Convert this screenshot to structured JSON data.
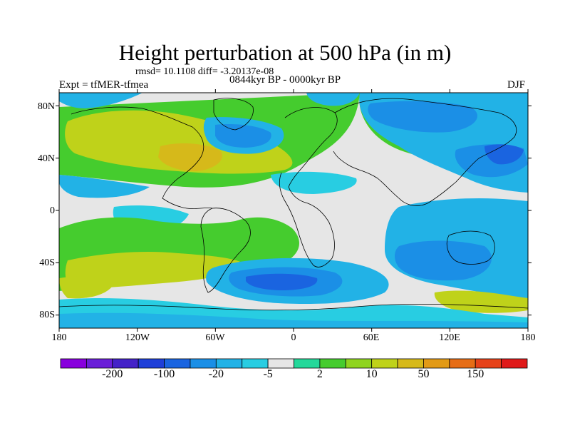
{
  "title": "Height perturbation at 500 hPa (in m)",
  "stats": "rmsd= 10.1108 diff= -3.20137e-08",
  "experiment": "Expt = tfMER-tfmea",
  "period": "0844kyr BP - 0000kyr BP",
  "season": "DJF",
  "map": {
    "projection": "cylindrical equidistant",
    "lat_labels": [
      "80N",
      "40N",
      "0",
      "40S",
      "80S"
    ],
    "lat_values": [
      80,
      40,
      0,
      -40,
      -80
    ],
    "lon_labels": [
      "180",
      "120W",
      "60W",
      "0",
      "60E",
      "120E",
      "180"
    ],
    "lon_values": [
      -180,
      -120,
      -60,
      0,
      60,
      120,
      180
    ]
  },
  "colorbar": {
    "colors": [
      "#8800dd",
      "#6a1fd8",
      "#4422c8",
      "#1f3fd8",
      "#1a64e0",
      "#1b8fe6",
      "#22b2e6",
      "#28cde2",
      "#e6e6e6",
      "#24d89a",
      "#45cc2e",
      "#8fd41f",
      "#bfd21a",
      "#d6b91a",
      "#e29a16",
      "#e66d16",
      "#e6421a",
      "#e01a1a"
    ],
    "labels": [
      "-200",
      "-100",
      "-20",
      "-5",
      "2",
      "10",
      "50",
      "150"
    ],
    "label_after_box": [
      1,
      3,
      5,
      7,
      9,
      11,
      13,
      15
    ]
  }
}
